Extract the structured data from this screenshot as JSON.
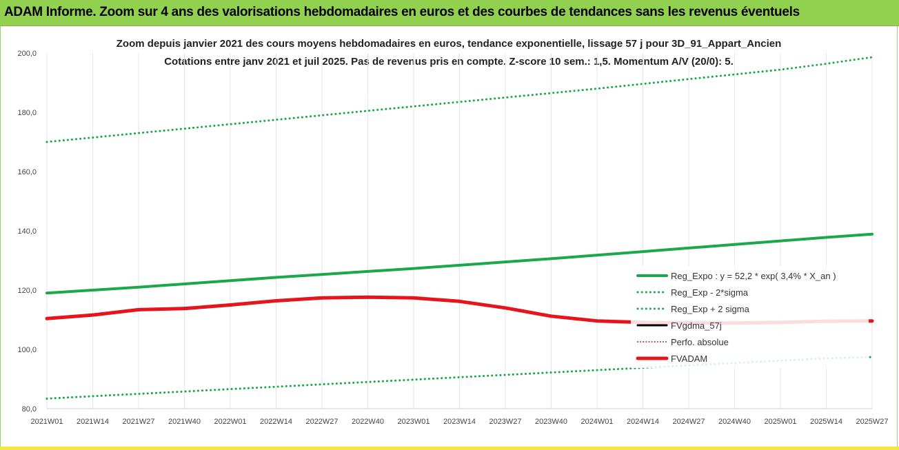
{
  "page": {
    "banner_title": "ADAM Informe. Zoom sur 4 ans des valorisations hebdomadaires en euros et des courbes de tendances sans les revenus éventuels"
  },
  "chart_data": {
    "type": "line",
    "title_line1": "Zoom depuis janvier 2021 des cours moyens hebdomadaires en euros, tendance exponentielle, lissage 57 j pour 3D_91_Appart_Ancien",
    "title_line2": "Cotations entre janv 2021 et juil 2025. Pas de revenus pris en compte. Z-score 10 sem.: 1,5. Momentum A/V (20/0): 5.",
    "x_tick_labels": [
      "2021W01",
      "2021W14",
      "2021W27",
      "2021W40",
      "2022W01",
      "2022W14",
      "2022W27",
      "2022W40",
      "2023W01",
      "2023W14",
      "2023W27",
      "2023W40",
      "2024W01",
      "2024W14",
      "2024W27",
      "2024W40",
      "2025W01",
      "2025W14",
      "2025W27"
    ],
    "y_tick_labels": [
      "80,0",
      "100,0",
      "120,0",
      "140,0",
      "160,0",
      "180,0",
      "200,0"
    ],
    "ylim": [
      80,
      200
    ],
    "y_ticks": [
      80,
      100,
      120,
      140,
      160,
      180,
      200
    ],
    "grid": "vertical",
    "legend_position": "bottom-right",
    "x_index": [
      0,
      13,
      26,
      39,
      52,
      65,
      78,
      91,
      104,
      117,
      130,
      143,
      156,
      169,
      182,
      195,
      208,
      221,
      234
    ],
    "series": [
      {
        "name": "Reg_Expo : y = 52,2 * exp( 3,4% *  X_an )",
        "color": "#1aa84a",
        "style": "solid",
        "width": 4,
        "values": [
          119,
          120,
          121,
          122.1,
          123.2,
          124.3,
          125.3,
          126.3,
          127.3,
          128.4,
          129.5,
          130.6,
          131.8,
          133,
          134.2,
          135.4,
          136.6,
          137.8,
          138.9
        ]
      },
      {
        "name": "Reg_Exp - 2*sigma",
        "color": "#1aa84a",
        "style": "dotted",
        "width": 3,
        "values": [
          83.4,
          84.2,
          85,
          85.8,
          86.6,
          87.4,
          88.2,
          89,
          89.8,
          90.6,
          91.4,
          92.2,
          93,
          93.8,
          94.6,
          95.4,
          96.2,
          97,
          97.4
        ]
      },
      {
        "name": "Reg_Exp + 2 sigma",
        "color": "#1aa84a",
        "style": "dotted",
        "width": 3,
        "values": [
          170,
          171.5,
          173,
          174.5,
          176,
          177.5,
          179,
          180.5,
          182,
          183.5,
          185,
          186.5,
          188,
          189.6,
          191.2,
          192.8,
          194.4,
          196.4,
          198.6
        ]
      },
      {
        "name": "FVgdma_57j",
        "color": "#000000",
        "style": "solid",
        "width": 3,
        "values": [
          110.4,
          111.6,
          113.4,
          114.0,
          114.8,
          116.4,
          117.4,
          117.6,
          117.4,
          116.2,
          114.0,
          111.2,
          109.6,
          109.1,
          108.9,
          108.9,
          109.1,
          109.5,
          109.6
        ]
      },
      {
        "name": "Perfo. absolue",
        "color": "#e02020",
        "style": "dotted",
        "width": 2,
        "values": [
          110.4,
          111.6,
          113.4,
          114.0,
          114.8,
          116.4,
          117.4,
          117.6,
          117.4,
          116.2,
          114.0,
          111.2,
          109.6,
          109.1,
          108.9,
          108.9,
          109.1,
          109.5,
          109.6
        ]
      },
      {
        "name": "FVADAM",
        "color": "#e8141c",
        "style": "solid",
        "width": 5,
        "values": [
          110.4,
          111.6,
          113.4,
          113.8,
          115.0,
          116.4,
          117.4,
          117.6,
          117.4,
          116.2,
          114.0,
          111.2,
          109.6,
          109.1,
          108.9,
          108.9,
          109.1,
          109.5,
          109.6
        ]
      }
    ]
  }
}
